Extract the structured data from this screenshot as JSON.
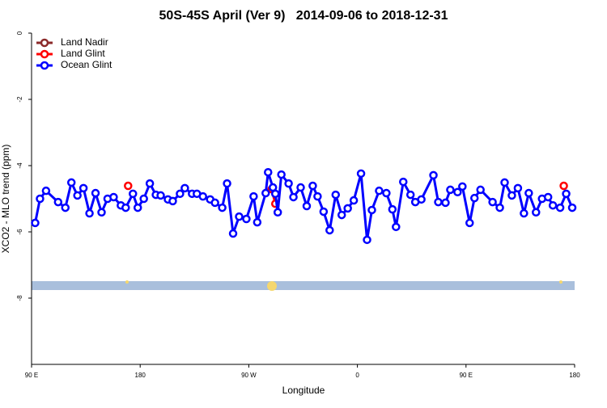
{
  "chart_data": {
    "type": "line",
    "title": "50S-45S April (Ver 9)   2014-09-06 to 2018-12-31",
    "xlabel": "Longitude",
    "ylabel": "XCO2 - MLO trend (ppm)",
    "xlim": [
      90,
      540
    ],
    "ylim": [
      -10,
      0
    ],
    "xticks": [
      {
        "value": 90,
        "label": "90 E"
      },
      180,
      {
        "value": 270,
        "label": "90 W"
      },
      {
        "value": 360,
        "label": "0"
      },
      {
        "value": 450,
        "label": "90 E"
      },
      {
        "value": 540,
        "label": "180"
      }
    ],
    "yticks": [
      0,
      -2,
      -4,
      -6,
      -8
    ],
    "legend": "top-left",
    "series": [
      {
        "name": "Land Nadir",
        "color": "#8b2a2a",
        "x": [],
        "values": []
      },
      {
        "name": "Land Glint",
        "color": "#ff0000",
        "x": [
          170,
          null,
          289,
          292,
          null,
          531
        ],
        "values": [
          -4.61,
          null,
          -4.71,
          -5.15,
          null,
          -4.61
        ]
      },
      {
        "name": "Ocean Glint",
        "color": "#0000ff",
        "x": [
          93,
          97,
          102,
          112,
          118,
          123,
          128,
          133,
          138,
          143,
          148,
          153,
          158,
          164,
          168,
          174,
          178,
          183,
          188,
          193,
          197,
          203,
          207,
          213,
          217,
          223,
          227,
          232,
          238,
          242,
          248,
          252,
          257,
          262,
          268,
          274,
          277,
          284,
          286,
          290,
          292,
          294,
          297,
          303,
          307,
          313,
          318,
          323,
          327,
          332,
          337,
          342,
          347,
          352,
          357,
          363,
          368,
          372,
          378,
          384,
          389,
          392,
          398,
          404,
          408,
          413,
          423,
          427,
          433,
          437,
          443,
          447,
          453,
          457,
          462,
          472,
          478,
          482,
          488,
          493,
          498,
          502,
          508,
          513,
          518,
          522,
          528,
          533,
          538
        ],
        "values": [
          -5.73,
          -5.0,
          -4.76,
          -5.1,
          -5.27,
          -4.51,
          -4.9,
          -4.68,
          -5.44,
          -4.83,
          -5.41,
          -5.0,
          -4.95,
          -5.2,
          -5.27,
          -4.85,
          -5.27,
          -5.0,
          -4.54,
          -4.88,
          -4.9,
          -5.02,
          -5.07,
          -4.85,
          -4.68,
          -4.85,
          -4.85,
          -4.93,
          -5.02,
          -5.12,
          -5.27,
          -4.54,
          -6.05,
          -5.54,
          -5.61,
          -4.93,
          -5.71,
          -4.83,
          -4.2,
          -4.66,
          -4.85,
          -5.41,
          -4.27,
          -4.54,
          -4.95,
          -4.66,
          -5.22,
          -4.61,
          -4.93,
          -5.39,
          -5.95,
          -4.88,
          -5.49,
          -5.29,
          -5.05,
          -4.24,
          -6.24,
          -5.34,
          -4.76,
          -4.83,
          -5.32,
          -5.85,
          -4.49,
          -4.88,
          -5.1,
          -5.02,
          -4.29,
          -5.1,
          -5.12,
          -4.73,
          -4.8,
          -4.63,
          -5.73,
          -4.98,
          -4.73,
          -5.1,
          -5.27,
          -4.51,
          -4.9,
          -4.68,
          -5.44,
          -4.83,
          -5.41,
          -5.0,
          -4.95,
          -5.2,
          -5.27,
          -4.85,
          -5.27
        ]
      }
    ]
  }
}
